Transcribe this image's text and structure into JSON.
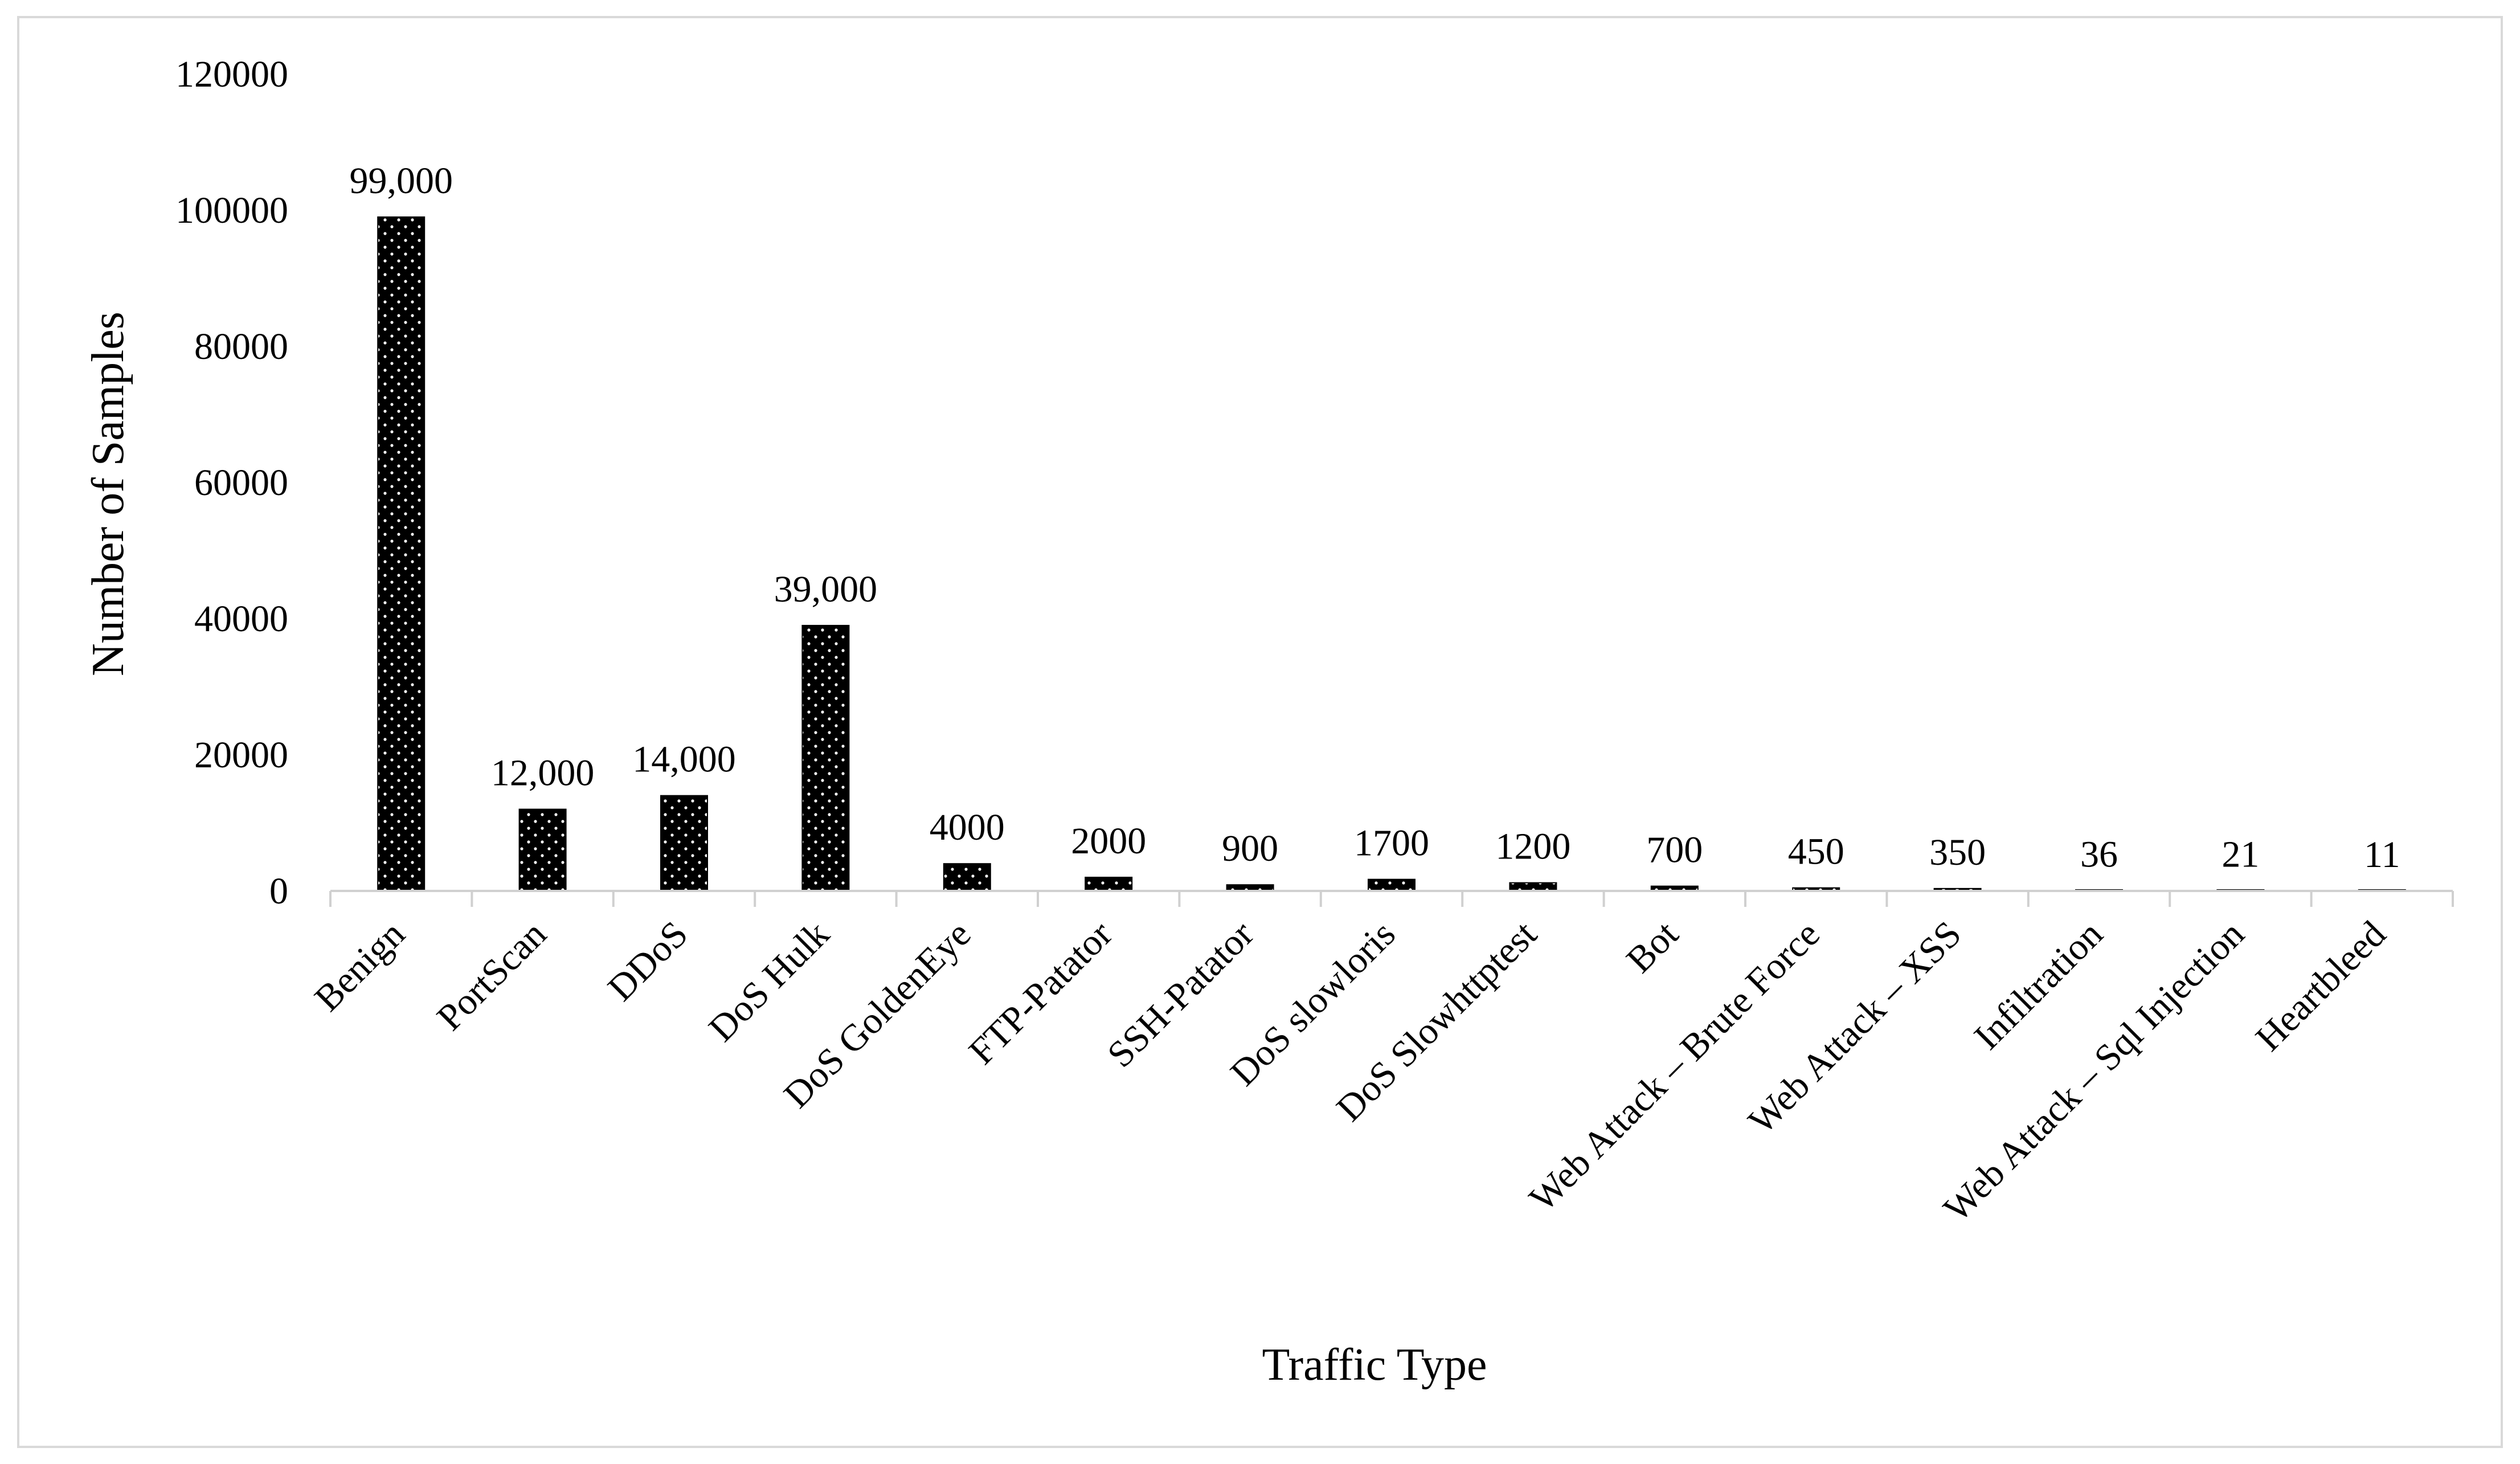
{
  "chart_data": {
    "type": "bar",
    "title": "",
    "xlabel": "Traffic Type",
    "ylabel": "Number of Samples",
    "ylim": [
      0,
      120000
    ],
    "yticks": [
      0,
      20000,
      40000,
      60000,
      80000,
      100000,
      120000
    ],
    "grid": false,
    "legend": "none",
    "bar_color": "#000000",
    "bar_pattern_color": "#ffffff",
    "categories": [
      "Benign",
      "PortScan",
      "DDoS",
      "DoS Hulk",
      "DoS GoldenEye",
      "FTP-Patator",
      "SSH-Patator",
      "DoS slowloris",
      "DoS Slowhttptest",
      "Bot",
      "Web Attack – Brute Force",
      "Web Attack – XSS",
      "Infiltration",
      "Web Attack – Sql Injection",
      "Heartbleed"
    ],
    "values": [
      99000,
      12000,
      14000,
      39000,
      4000,
      2000,
      900,
      1700,
      1200,
      700,
      450,
      350,
      36,
      21,
      11
    ],
    "data_labels": [
      "99,000",
      "12,000",
      "14,000",
      "39,000",
      "4000",
      "2000",
      "900",
      "1700",
      "1200",
      "700",
      "450",
      "350",
      "36",
      "21",
      "11"
    ]
  }
}
